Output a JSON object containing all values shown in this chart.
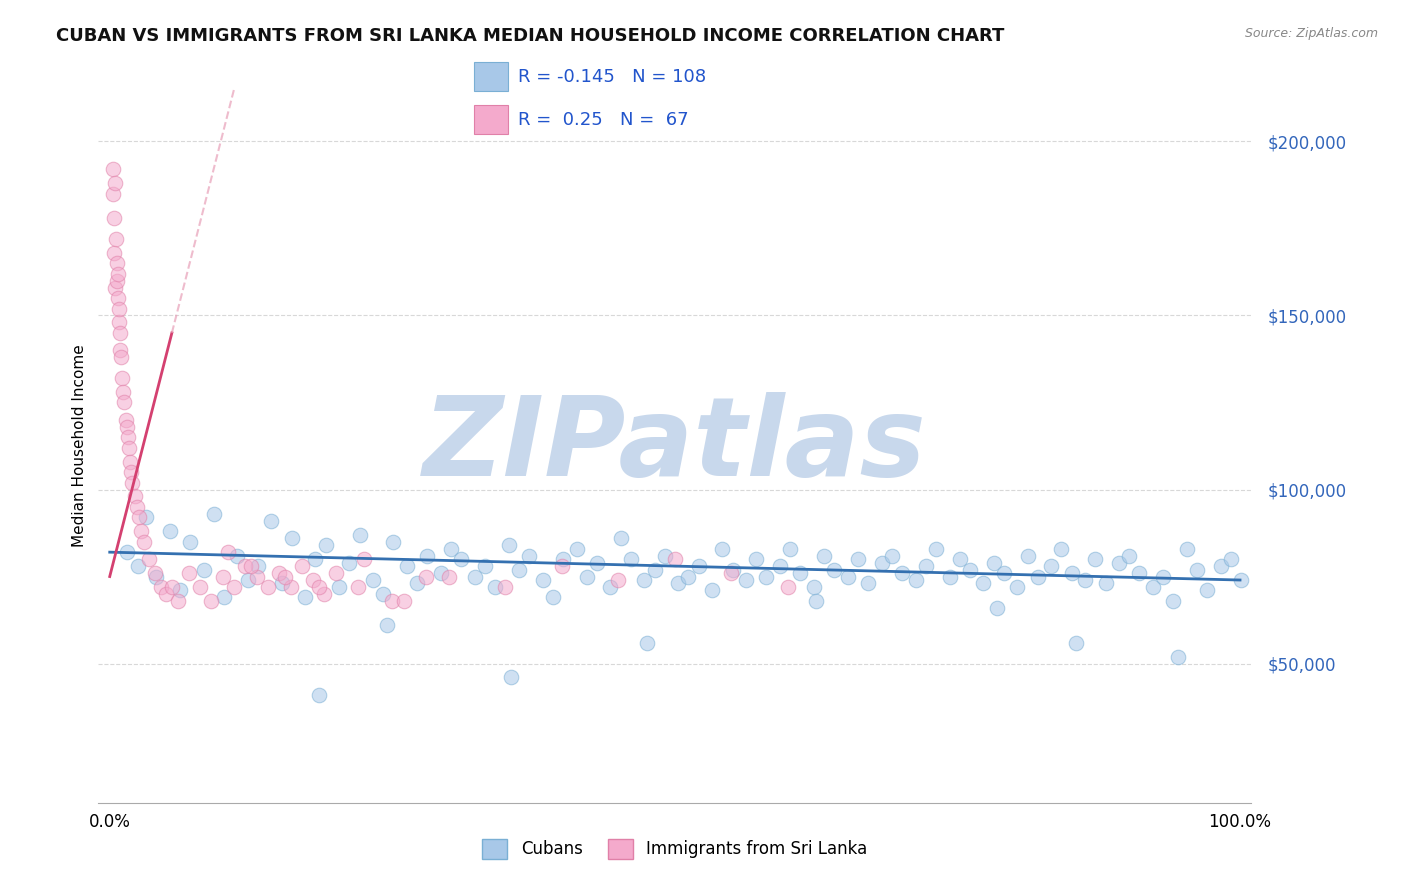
{
  "title": "CUBAN VS IMMIGRANTS FROM SRI LANKA MEDIAN HOUSEHOLD INCOME CORRELATION CHART",
  "source": "Source: ZipAtlas.com",
  "ylabel": "Median Household Income",
  "xlabel": "",
  "xlim": [
    -1.0,
    101.0
  ],
  "ylim": [
    10000,
    215000
  ],
  "yticks": [
    50000,
    100000,
    150000,
    200000
  ],
  "ytick_labels": [
    "$50,000",
    "$100,000",
    "$150,000",
    "$200,000"
  ],
  "xticks": [
    0,
    100
  ],
  "xtick_labels": [
    "0.0%",
    "100.0%"
  ],
  "blue_color": "#A8C8E8",
  "blue_edge": "#7AAFD4",
  "blue_line": "#3470B0",
  "pink_color": "#F4AACC",
  "pink_edge": "#E080A8",
  "pink_line": "#D44070",
  "pink_line_dashed": "#E8A0B8",
  "R_blue": -0.145,
  "N_blue": 108,
  "R_pink": 0.25,
  "N_pink": 67,
  "legend_label_blue": "Cubans",
  "legend_label_pink": "Immigrants from Sri Lanka",
  "watermark": "ZIPatlas",
  "grid_color": "#C8C8C8",
  "background_color": "#FFFFFF",
  "title_fontsize": 13,
  "axis_label_fontsize": 11,
  "tick_fontsize": 12,
  "dot_size": 110,
  "dot_alpha": 0.55,
  "watermark_color": "#C8D8EC",
  "watermark_fontsize": 80,
  "blue_scatter_x": [
    1.5,
    2.5,
    3.2,
    4.1,
    5.3,
    6.2,
    7.1,
    8.3,
    9.2,
    10.1,
    11.3,
    12.2,
    13.1,
    14.3,
    15.2,
    16.1,
    17.3,
    18.2,
    19.1,
    20.3,
    21.2,
    22.1,
    23.3,
    24.2,
    25.1,
    26.3,
    27.2,
    28.1,
    29.3,
    30.2,
    31.1,
    32.3,
    33.2,
    34.1,
    35.3,
    36.2,
    37.1,
    38.3,
    39.2,
    40.1,
    41.3,
    42.2,
    43.1,
    44.3,
    45.2,
    46.1,
    47.3,
    48.2,
    49.1,
    50.3,
    51.2,
    52.1,
    53.3,
    54.2,
    55.1,
    56.3,
    57.2,
    58.1,
    59.3,
    60.2,
    61.1,
    62.3,
    63.2,
    64.1,
    65.3,
    66.2,
    67.1,
    68.3,
    69.2,
    70.1,
    71.3,
    72.2,
    73.1,
    74.3,
    75.2,
    76.1,
    77.3,
    78.2,
    79.1,
    80.3,
    81.2,
    82.1,
    83.3,
    84.2,
    85.1,
    86.3,
    87.2,
    88.1,
    89.3,
    90.2,
    91.1,
    92.3,
    93.2,
    94.1,
    95.3,
    96.2,
    97.1,
    98.3,
    99.2,
    100.1,
    35.5,
    18.5,
    24.5,
    47.5,
    62.5,
    78.5,
    85.5,
    94.5
  ],
  "blue_scatter_y": [
    82000,
    78000,
    92000,
    75000,
    88000,
    71000,
    85000,
    77000,
    93000,
    69000,
    81000,
    74000,
    78000,
    91000,
    73000,
    86000,
    69000,
    80000,
    84000,
    72000,
    79000,
    87000,
    74000,
    70000,
    85000,
    78000,
    73000,
    81000,
    76000,
    83000,
    80000,
    75000,
    78000,
    72000,
    84000,
    77000,
    81000,
    74000,
    69000,
    80000,
    83000,
    75000,
    79000,
    72000,
    86000,
    80000,
    74000,
    77000,
    81000,
    73000,
    75000,
    78000,
    71000,
    83000,
    77000,
    74000,
    80000,
    75000,
    78000,
    83000,
    76000,
    72000,
    81000,
    77000,
    75000,
    80000,
    73000,
    79000,
    81000,
    76000,
    74000,
    78000,
    83000,
    75000,
    80000,
    77000,
    73000,
    79000,
    76000,
    72000,
    81000,
    75000,
    78000,
    83000,
    76000,
    74000,
    80000,
    73000,
    79000,
    81000,
    76000,
    72000,
    75000,
    68000,
    83000,
    77000,
    71000,
    78000,
    80000,
    74000,
    46000,
    41000,
    61000,
    56000,
    68000,
    66000,
    56000,
    52000
  ],
  "pink_scatter_x": [
    0.25,
    0.3,
    0.35,
    0.4,
    0.45,
    0.5,
    0.55,
    0.6,
    0.65,
    0.7,
    0.75,
    0.8,
    0.85,
    0.9,
    0.95,
    1.0,
    1.1,
    1.2,
    1.3,
    1.4,
    1.5,
    1.6,
    1.7,
    1.8,
    1.9,
    2.0,
    2.2,
    2.4,
    2.6,
    2.8,
    3.0,
    3.5,
    4.0,
    4.5,
    5.0,
    5.5,
    6.0,
    7.0,
    8.0,
    9.0,
    10.0,
    11.0,
    12.0,
    13.0,
    14.0,
    15.0,
    16.0,
    17.0,
    18.0,
    19.0,
    20.0,
    22.0,
    25.0,
    28.0,
    10.5,
    12.5,
    15.5,
    18.5,
    22.5,
    26.0,
    30.0,
    35.0,
    40.0,
    45.0,
    50.0,
    55.0,
    60.0
  ],
  "pink_scatter_y": [
    185000,
    192000,
    178000,
    168000,
    188000,
    158000,
    172000,
    165000,
    160000,
    155000,
    162000,
    148000,
    152000,
    145000,
    140000,
    138000,
    132000,
    128000,
    125000,
    120000,
    118000,
    115000,
    112000,
    108000,
    105000,
    102000,
    98000,
    95000,
    92000,
    88000,
    85000,
    80000,
    76000,
    72000,
    70000,
    72000,
    68000,
    76000,
    72000,
    68000,
    75000,
    72000,
    78000,
    75000,
    72000,
    76000,
    72000,
    78000,
    74000,
    70000,
    76000,
    72000,
    68000,
    75000,
    82000,
    78000,
    75000,
    72000,
    80000,
    68000,
    75000,
    72000,
    78000,
    74000,
    80000,
    76000,
    72000
  ]
}
